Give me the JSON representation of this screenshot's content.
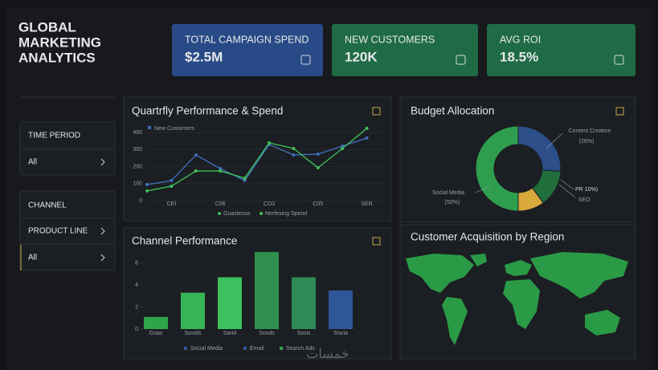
{
  "header": {
    "title_lines": [
      "GLOBAL",
      "MARKETING",
      "ANALYTICS"
    ]
  },
  "kpis": [
    {
      "label": "TOTAL CAMPAIGN SPEND",
      "value": "$2.5M"
    },
    {
      "label": "NEW CUSTOMERS",
      "value": "120K"
    },
    {
      "label": "AVG ROI",
      "value": "18.5%"
    }
  ],
  "sidebar": {
    "time_period": {
      "label": "TIME PERIOD",
      "value": "All"
    },
    "channel": {
      "label": "CHANNEL",
      "items": [
        "PRODUCT LINE",
        "All"
      ]
    }
  },
  "map": {
    "title": "Customer Acquisition by Region"
  },
  "watermark": "خمسات",
  "chart_data": [
    {
      "type": "line",
      "title": "Quartrfly Performance & Spend",
      "categories": [
        null,
        "CEl",
        null,
        "C06",
        null,
        "CO3",
        null,
        "C05",
        null,
        "SER"
      ],
      "series": [
        {
          "name": "New Customers",
          "color": "#3f6fb8",
          "values": [
            94,
            118,
            268,
            188,
            118,
            329,
            268,
            273,
            320,
            367
          ]
        },
        {
          "name": "Nerfesing Spend",
          "color": "#3fbf5a",
          "values": [
            57,
            85,
            174,
            174,
            132,
            339,
            306,
            193,
            306,
            424
          ]
        }
      ],
      "legend_extra": "Guastesso",
      "ylim": [
        0,
        450
      ],
      "yticks": [
        0,
        100,
        200,
        300,
        400
      ],
      "grid": true
    },
    {
      "type": "bar",
      "title": "Channel Performance",
      "categories": [
        "Goas",
        "Sosids",
        "Sarid",
        "Sosds",
        "Sosis",
        "Stsria"
      ],
      "values": [
        1.1,
        3.3,
        4.7,
        7.0,
        4.7,
        3.5
      ],
      "colors": [
        "#2fa54a",
        "#35b556",
        "#3cc15e",
        "#2e8f4f",
        "#2f8a55",
        "#2f5699"
      ],
      "legend": [
        {
          "name": "Social Media",
          "color": "#2f5699"
        },
        {
          "name": "Email",
          "color": "#2f5699"
        },
        {
          "name": "Search Ads",
          "color": "#2fa54a"
        }
      ],
      "ylim": [
        0,
        7.5
      ],
      "yticks": [
        0,
        2,
        4,
        6
      ]
    },
    {
      "type": "pie",
      "title": "Budget Allocation",
      "categories": [
        "Content Creation",
        "SEO",
        "PR",
        "Social Media"
      ],
      "values": [
        26,
        14,
        10,
        50
      ],
      "value_labels": [
        "(26%)",
        null,
        "10%)",
        "(50%)"
      ],
      "colors": [
        "#2c4f8a",
        "#1f6e3c",
        "#d9a93c",
        "#2e9e4e"
      ]
    }
  ]
}
